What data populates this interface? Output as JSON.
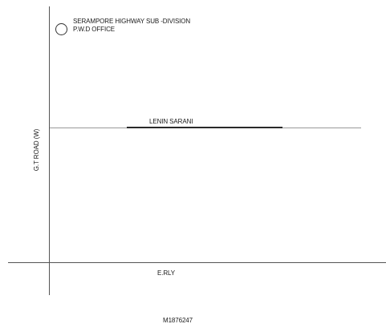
{
  "map": {
    "office": {
      "line1": "SERAMPORE HIGHWAY SUB -DIVISION",
      "line2": "P.W.D OFFICE",
      "marker_icon": "circle-marker-icon"
    },
    "roads": {
      "lenin_sarani": "LENIN SARANI",
      "gt_road": "G.T ROAD (W)",
      "railway": "E.RLY"
    },
    "map_id": "M1876247"
  }
}
